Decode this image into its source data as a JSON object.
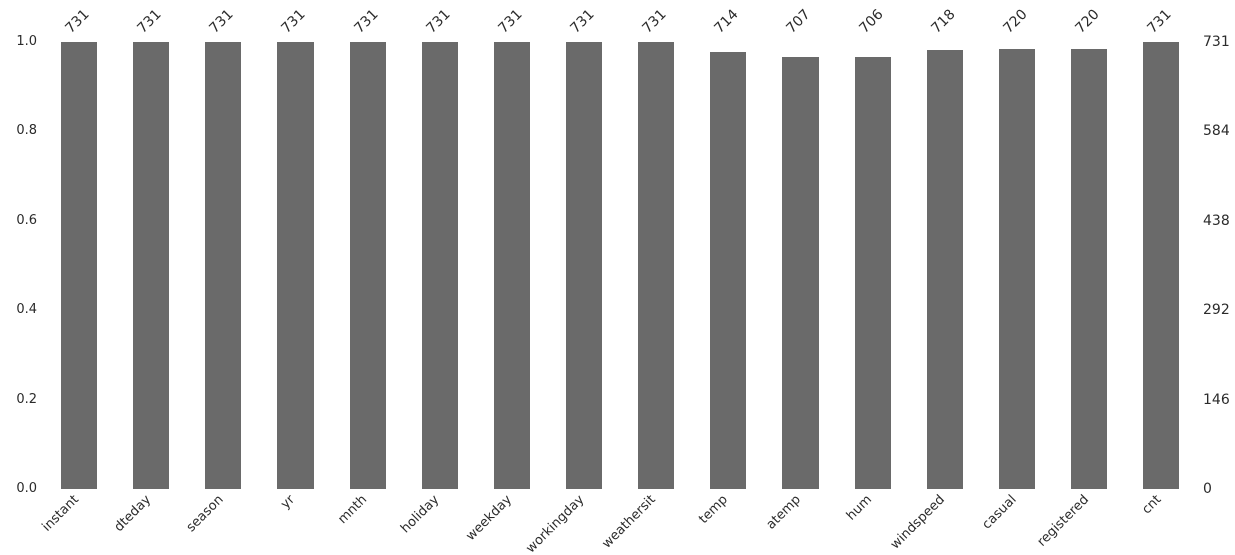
{
  "figure": {
    "background": "#ffffff",
    "bar_color": "#6a6a6a",
    "text_color": "#2b2b2b"
  },
  "chart_data": {
    "type": "bar",
    "title": "",
    "xlabel": "",
    "ylabel": "",
    "categories": [
      "instant",
      "dteday",
      "season",
      "yr",
      "mnth",
      "holiday",
      "weekday",
      "workingday",
      "weathersit",
      "temp",
      "atemp",
      "hum",
      "windspeed",
      "casual",
      "registered",
      "cnt"
    ],
    "values": [
      731,
      731,
      731,
      731,
      731,
      731,
      731,
      731,
      731,
      714,
      707,
      706,
      718,
      720,
      720,
      731
    ],
    "bar_labels": [
      "731",
      "731",
      "731",
      "731",
      "731",
      "731",
      "731",
      "731",
      "731",
      "714",
      "707",
      "706",
      "718",
      "720",
      "720",
      "731"
    ],
    "left_axis": {
      "ticks": [
        "0.0",
        "0.2",
        "0.4",
        "0.6",
        "0.8",
        "1.0"
      ],
      "range": [
        0.0,
        1.0
      ]
    },
    "right_axis": {
      "ticks": [
        "0",
        "146",
        "292",
        "438",
        "584",
        "731"
      ],
      "range": [
        0,
        731
      ]
    },
    "grid": false,
    "legend": "none",
    "bar_width_fraction": 0.5,
    "x_tick_rotation": 45,
    "bar_label_rotation": 45
  }
}
